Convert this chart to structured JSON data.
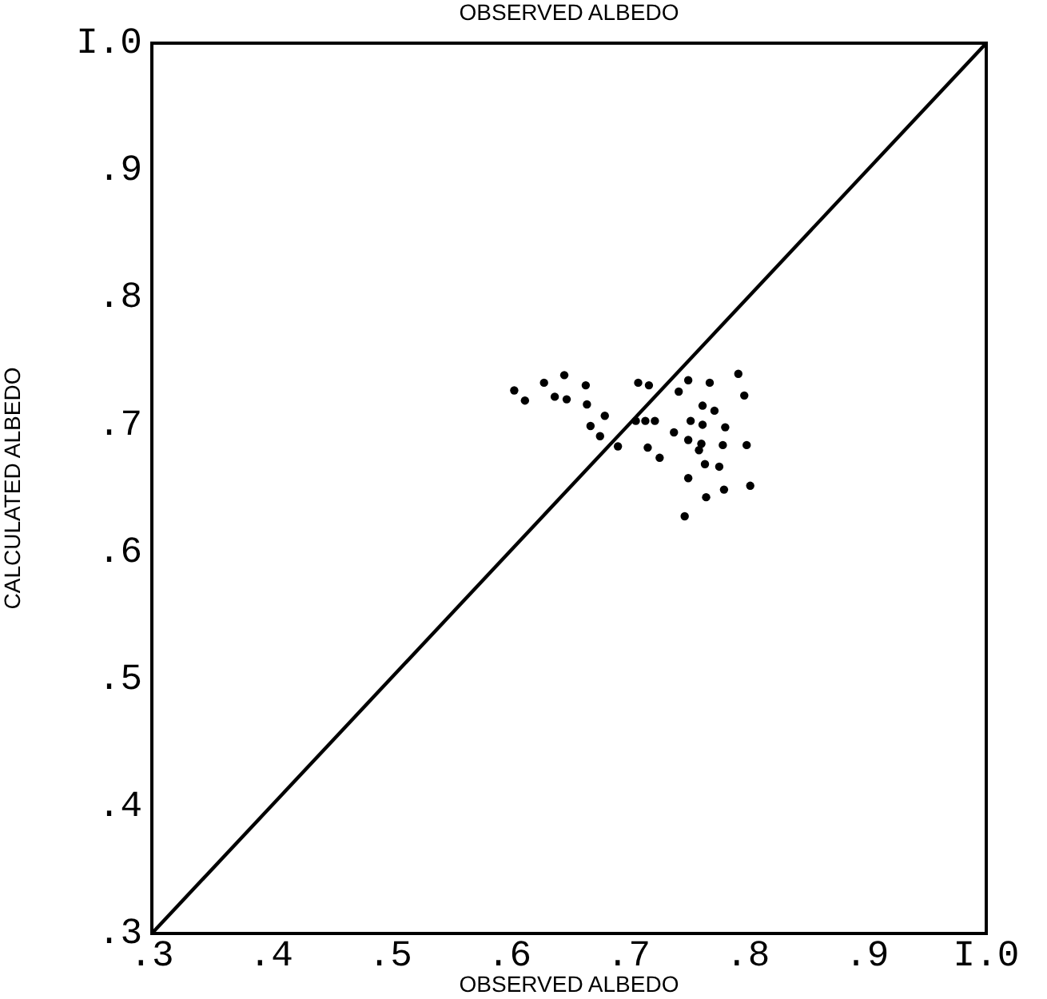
{
  "chart_data": {
    "type": "scatter",
    "xlabel": "OBSERVED ALBEDO",
    "x2label": "OBSERVED ALBEDO",
    "ylabel": "CALCULATED ALBEDO",
    "xlim": [
      0.3,
      1.0
    ],
    "ylim": [
      0.3,
      1.0
    ],
    "xticks": [
      {
        "value": 0.3,
        "label": ".3"
      },
      {
        "value": 0.4,
        "label": ".4"
      },
      {
        "value": 0.5,
        "label": ".5"
      },
      {
        "value": 0.6,
        "label": ".6"
      },
      {
        "value": 0.7,
        "label": ".7"
      },
      {
        "value": 0.8,
        "label": ".8"
      },
      {
        "value": 0.9,
        "label": ".9"
      },
      {
        "value": 1.0,
        "label": "I.0"
      }
    ],
    "yticks": [
      {
        "value": 0.3,
        "label": ".3"
      },
      {
        "value": 0.4,
        "label": ".4"
      },
      {
        "value": 0.5,
        "label": ".5"
      },
      {
        "value": 0.6,
        "label": ".6"
      },
      {
        "value": 0.7,
        "label": ".7"
      },
      {
        "value": 0.8,
        "label": ".8"
      },
      {
        "value": 0.9,
        "label": ".9"
      },
      {
        "value": 1.0,
        "label": "I.0"
      }
    ],
    "grid": false,
    "legend": false,
    "marker": "circle",
    "series": [
      {
        "color": "#000000",
        "x": [
          0.604,
          0.613,
          0.629,
          0.646,
          0.638,
          0.648,
          0.664,
          0.665,
          0.68,
          0.668,
          0.676,
          0.691,
          0.708,
          0.717,
          0.706,
          0.714,
          0.722,
          0.716,
          0.726,
          0.742,
          0.75,
          0.768,
          0.792,
          0.797,
          0.762,
          0.772,
          0.752,
          0.762,
          0.781,
          0.738,
          0.75,
          0.761,
          0.759,
          0.779,
          0.799,
          0.764,
          0.776,
          0.75,
          0.78,
          0.802,
          0.765,
          0.747
        ],
        "values": [
          0.727,
          0.719,
          0.733,
          0.739,
          0.722,
          0.72,
          0.731,
          0.716,
          0.707,
          0.699,
          0.691,
          0.683,
          0.733,
          0.731,
          0.703,
          0.703,
          0.703,
          0.682,
          0.674,
          0.726,
          0.735,
          0.733,
          0.74,
          0.723,
          0.715,
          0.711,
          0.703,
          0.7,
          0.698,
          0.694,
          0.688,
          0.685,
          0.68,
          0.684,
          0.684,
          0.669,
          0.667,
          0.658,
          0.649,
          0.652,
          0.643,
          0.628
        ]
      },
      {
        "type": "line",
        "color": "#000000",
        "marker": "none",
        "x": [
          0.3,
          1.0
        ],
        "values": [
          0.3,
          1.0
        ]
      }
    ]
  }
}
